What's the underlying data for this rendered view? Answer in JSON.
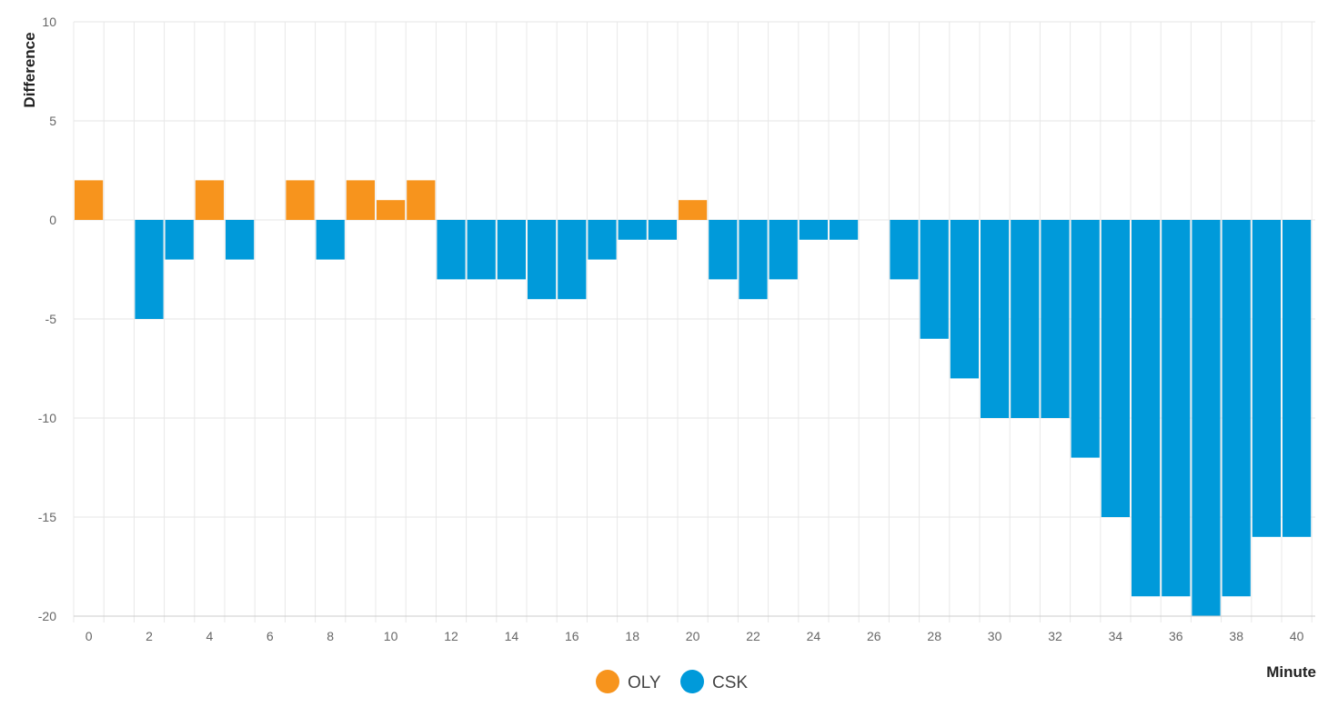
{
  "chart_data": {
    "type": "bar",
    "xlabel": "Minute",
    "ylabel": "Difference",
    "xlim": [
      0,
      40
    ],
    "ylim": [
      -20,
      10
    ],
    "y_ticks": [
      10,
      5,
      0,
      -5,
      -10,
      -15,
      -20
    ],
    "x_ticks": [
      0,
      2,
      4,
      6,
      8,
      10,
      12,
      14,
      16,
      18,
      20,
      22,
      24,
      26,
      28,
      30,
      32,
      34,
      36,
      38,
      40
    ],
    "grid": true,
    "legend_position": "bottom-center",
    "series": [
      {
        "name": "OLY",
        "color": "#f7941d"
      },
      {
        "name": "CSK",
        "color": "#009ada"
      }
    ],
    "x": [
      0,
      1,
      2,
      3,
      4,
      5,
      6,
      7,
      8,
      9,
      10,
      11,
      12,
      13,
      14,
      15,
      16,
      17,
      18,
      19,
      20,
      21,
      22,
      23,
      24,
      25,
      26,
      27,
      28,
      29,
      30,
      31,
      32,
      33,
      34,
      35,
      36,
      37,
      38,
      39,
      40
    ],
    "values": [
      2,
      0,
      -5,
      -2,
      2,
      -2,
      0,
      2,
      -2,
      2,
      1,
      2,
      -3,
      -3,
      -3,
      -4,
      -4,
      -2,
      -1,
      -1,
      1,
      -3,
      -4,
      -3,
      -1,
      -1,
      0,
      -3,
      -6,
      -8,
      -10,
      -10,
      -10,
      -12,
      -15,
      -19,
      -19,
      -20,
      -19,
      -16,
      -16
    ]
  }
}
